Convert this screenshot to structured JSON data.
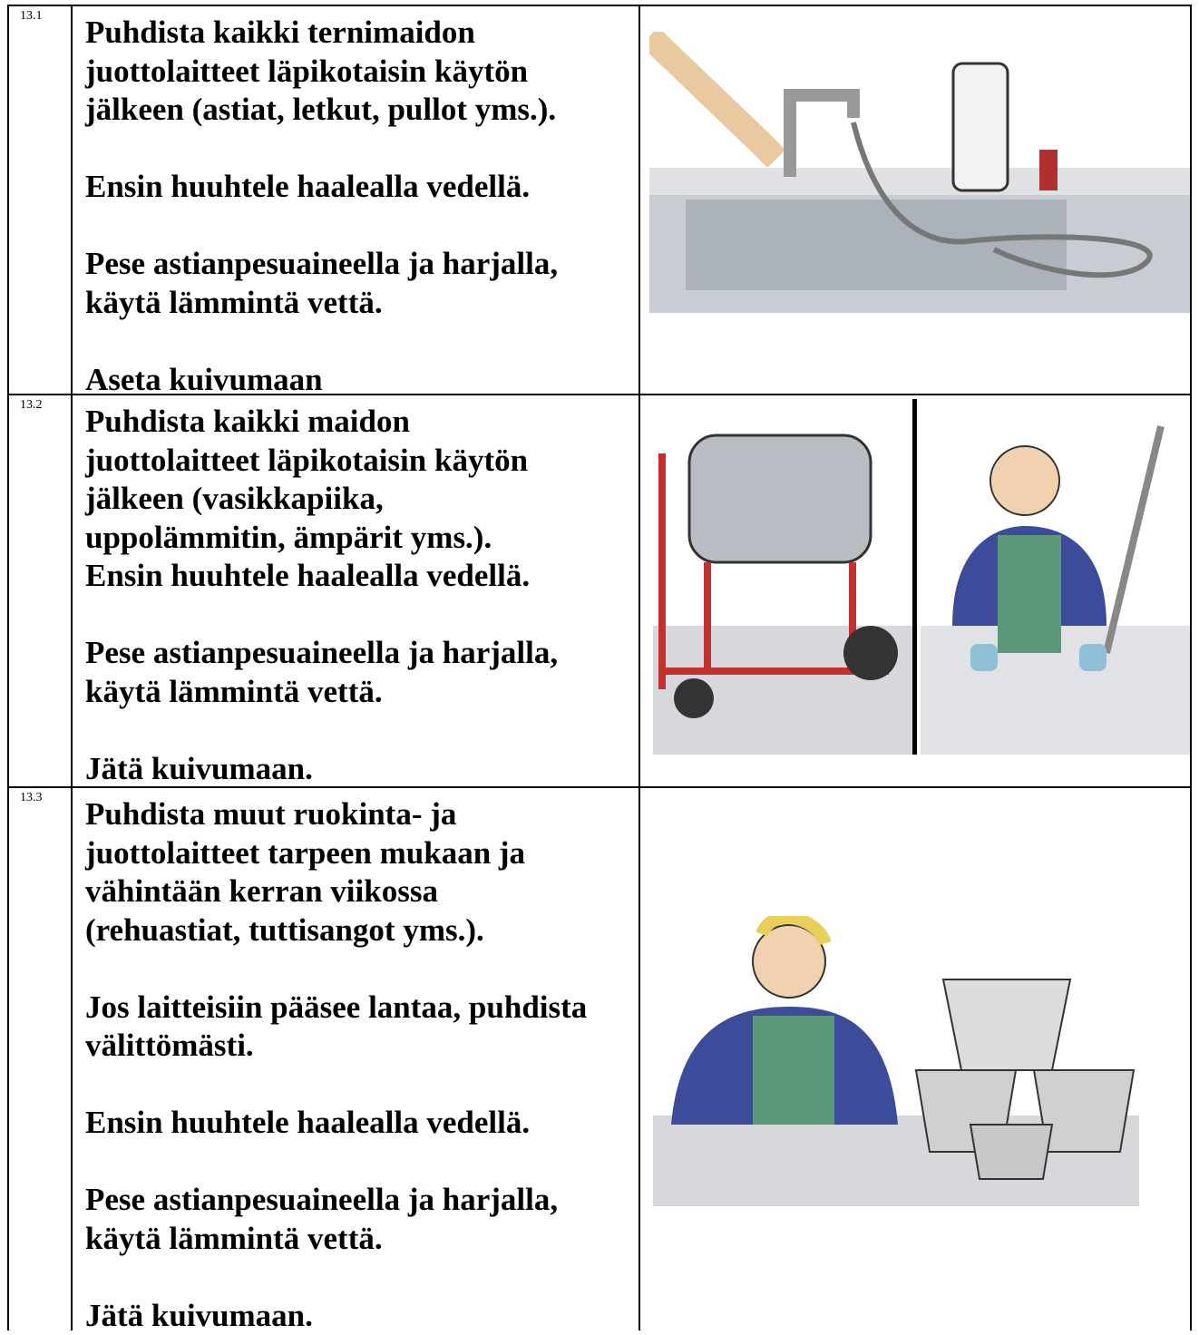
{
  "table": {
    "rows": [
      {
        "number": "13.1",
        "paragraphs": [
          [
            "Puhdista kaikki ternimaidon",
            "juottolaitteet läpikotaisin käytön",
            "jälkeen (astiat, letkut, pullot yms.)."
          ],
          [
            "Ensin huuhtele haalealla vedellä."
          ],
          [
            "Pese astianpesuaineella ja harjalla,",
            "käytä lämmintä vettä."
          ],
          [
            "Aseta kuivumaan"
          ]
        ]
      },
      {
        "number": "13.2",
        "paragraphs": [
          [
            "Puhdista kaikki maidon",
            "juottolaitteet läpikotaisin käytön",
            "jälkeen (vasikkapiika,",
            "uppolämmitin, ämpärit yms.).",
            "Ensin huuhtele haalealla vedellä."
          ],
          [
            "Pese astianpesuaineella ja harjalla,",
            "käytä lämmintä vettä."
          ],
          [
            "Jätä kuivumaan."
          ]
        ]
      },
      {
        "number": "13.3",
        "paragraphs": [
          [
            "Puhdista muut ruokinta- ja",
            "juottolaitteet tarpeen mukaan ja",
            "vähintään kerran viikossa",
            "(rehuastiat, tuttisangot yms.)."
          ],
          [
            "Jos laitteisiin pääsee lantaa, puhdista",
            "välittömästi."
          ],
          [
            "Ensin huuhtele haalealla vedellä."
          ],
          [
            "Pese astianpesuaineella ja harjalla,",
            "käytä lämmintä vettä."
          ],
          [
            "Jätä kuivumaan."
          ]
        ]
      }
    ]
  }
}
